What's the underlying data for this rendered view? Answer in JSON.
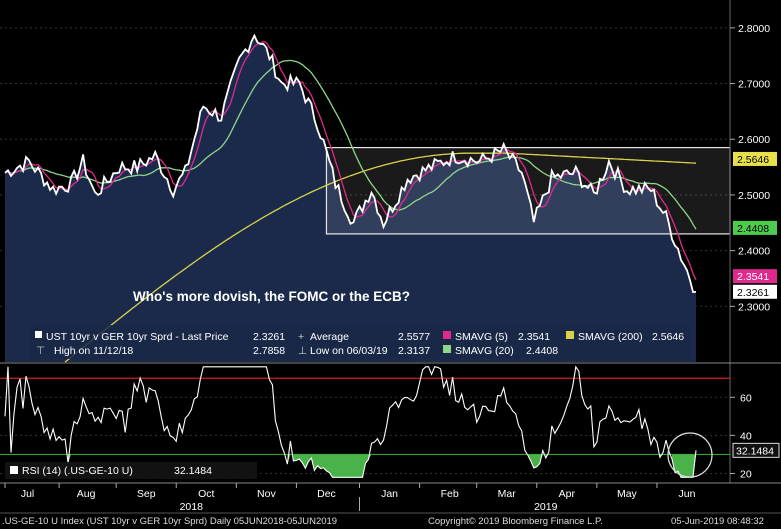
{
  "annotation": "Who's more dovish, the FOMC or the ECB?",
  "legend": {
    "last_price_label": "UST 10yr v GER 10yr Sprd - Last Price",
    "last_price_value": "2.3261",
    "high_label": "High on 11/12/18",
    "high_value": "2.7858",
    "average_label": "Average",
    "average_value": "2.5577",
    "low_label": "Low on 06/03/19",
    "low_value": "2.3137",
    "sma5_label": "SMAVG (5)",
    "sma5_value": "2.3541",
    "sma20_label": "SMAVG (20)",
    "sma20_value": "2.4408",
    "sma200_label": "SMAVG (200)",
    "sma200_value": "2.5646"
  },
  "rsi_label": "RSI (14) (.US-GE-10 U)",
  "rsi_value": "32.1484",
  "footer": {
    "left": ".US-GE-10 U Index (UST 10yr v GER 10yr Sprd)  Daily 05JUN2018-05JUN2019",
    "center": "Copyright© 2019 Bloomberg Finance L.P.",
    "right": "05-Jun-2019 08:48:32"
  },
  "colors": {
    "background": "#000000",
    "fill": "#1b2a4a",
    "price": "#ffffff",
    "sma5": "#e0298f",
    "sma20": "#8fd68a",
    "sma200": "#d8d24a",
    "rsi_upper": "#d81e1e",
    "rsi_lower": "#2aa82a",
    "rsi_oversold_fill": "#49b34a",
    "badge_yellow": "#e8e04a",
    "badge_green": "#4ecb4e",
    "badge_pink": "#e0298f",
    "badge_white": "#ffffff"
  },
  "chart_data": [
    {
      "type": "line",
      "ylim": [
        2.2,
        2.85
      ],
      "y_ticks": [
        "2.3000",
        "2.4000",
        "2.5000",
        "2.6000",
        "2.7000",
        "2.8000"
      ],
      "y_tick_values": [
        2.3,
        2.4,
        2.5,
        2.6,
        2.7,
        2.8
      ],
      "month_labels": [
        "Jul",
        "Aug",
        "Sep",
        "Oct",
        "Nov",
        "Dec",
        "Jan",
        "Feb",
        "Mar",
        "Apr",
        "May",
        "Jun"
      ],
      "year_labels": [
        "2018",
        "2019"
      ],
      "range_box": [
        2.43,
        2.585
      ],
      "price_anchors": [
        [
          0,
          2.54
        ],
        [
          8,
          2.56
        ],
        [
          16,
          2.51
        ],
        [
          22,
          2.52
        ],
        [
          26,
          2.56
        ],
        [
          30,
          2.5
        ],
        [
          38,
          2.55
        ],
        [
          44,
          2.55
        ],
        [
          50,
          2.57
        ],
        [
          56,
          2.51
        ],
        [
          60,
          2.54
        ],
        [
          66,
          2.66
        ],
        [
          72,
          2.64
        ],
        [
          78,
          2.74
        ],
        [
          83,
          2.79
        ],
        [
          88,
          2.75
        ],
        [
          92,
          2.7
        ],
        [
          98,
          2.7
        ],
        [
          104,
          2.63
        ],
        [
          110,
          2.52
        ],
        [
          116,
          2.45
        ],
        [
          122,
          2.51
        ],
        [
          126,
          2.45
        ],
        [
          134,
          2.53
        ],
        [
          142,
          2.55
        ],
        [
          150,
          2.57
        ],
        [
          158,
          2.56
        ],
        [
          166,
          2.58
        ],
        [
          172,
          2.54
        ],
        [
          176,
          2.45
        ],
        [
          182,
          2.53
        ],
        [
          190,
          2.54
        ],
        [
          196,
          2.5
        ],
        [
          201,
          2.56
        ],
        [
          207,
          2.51
        ],
        [
          215,
          2.51
        ],
        [
          220,
          2.46
        ],
        [
          225,
          2.39
        ],
        [
          230,
          2.3261
        ]
      ],
      "series": [
        {
          "name": "UST 10yr v GER 10yr Sprd - Last Price",
          "last": 2.3261
        },
        {
          "name": "SMAVG (5)",
          "last": 2.3541
        },
        {
          "name": "SMAVG (20)",
          "last": 2.4408
        },
        {
          "name": "SMAVG (200)",
          "last": 2.5646
        }
      ]
    },
    {
      "type": "line",
      "ylim": [
        15,
        78
      ],
      "y_ticks": [
        "20",
        "40",
        "60"
      ],
      "y_tick_values": [
        20,
        40,
        60
      ],
      "upper_band": 70,
      "lower_band": 30,
      "series": [
        {
          "name": "RSI (14) (.US-GE-10 U)",
          "last": 32.1484
        }
      ]
    }
  ]
}
